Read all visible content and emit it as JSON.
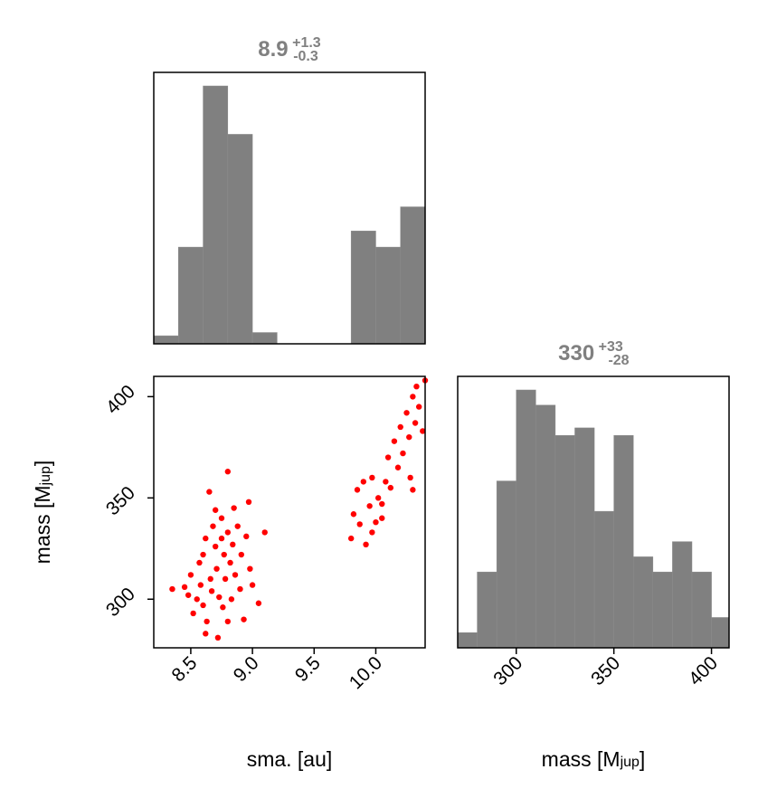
{
  "colors": {
    "hist": "#808080",
    "scatter": "#ff0000",
    "title": "#808080",
    "frame": "#000000"
  },
  "chart_data": [
    {
      "type": "histogram",
      "panel": "sma-histogram",
      "title": {
        "value": "8.9",
        "plus": "+1.3",
        "minus": "-0.3"
      },
      "bin_edges": [
        8.2,
        8.4,
        8.6,
        8.8,
        9.0,
        9.2,
        9.4,
        9.6,
        9.8,
        10.0,
        10.2,
        10.4
      ],
      "counts": [
        1,
        12,
        32,
        26,
        1.4,
        0,
        0,
        0,
        14,
        12,
        17
      ],
      "xlim": [
        8.2,
        10.4
      ]
    },
    {
      "type": "scatter",
      "panel": "sma-mass-scatter",
      "xlabel_main": "sma. [au]",
      "ylabel_main": "mass [M",
      "ylabel_sub": "jup",
      "ylabel_close": "]",
      "xlim": [
        8.2,
        10.4
      ],
      "ylim": [
        276,
        410
      ],
      "xticks": [
        8.5,
        9.0,
        9.5,
        10.0
      ],
      "xtick_labels": [
        "8.5",
        "9.0",
        "9.5",
        "10.0"
      ],
      "yticks": [
        300,
        350,
        400
      ],
      "ytick_labels": [
        "300",
        "350",
        "400"
      ],
      "points": [
        [
          8.45,
          306
        ],
        [
          8.5,
          312
        ],
        [
          8.52,
          293
        ],
        [
          8.55,
          300
        ],
        [
          8.57,
          318
        ],
        [
          8.58,
          307
        ],
        [
          8.6,
          322
        ],
        [
          8.6,
          297
        ],
        [
          8.62,
          330
        ],
        [
          8.63,
          289
        ],
        [
          8.65,
          353
        ],
        [
          8.66,
          310
        ],
        [
          8.67,
          304
        ],
        [
          8.68,
          336
        ],
        [
          8.7,
          344
        ],
        [
          8.7,
          326
        ],
        [
          8.71,
          315
        ],
        [
          8.72,
          281
        ],
        [
          8.73,
          301
        ],
        [
          8.75,
          340
        ],
        [
          8.75,
          330
        ],
        [
          8.76,
          296
        ],
        [
          8.77,
          322
        ],
        [
          8.78,
          310
        ],
        [
          8.8,
          363
        ],
        [
          8.8,
          333
        ],
        [
          8.8,
          289
        ],
        [
          8.82,
          318
        ],
        [
          8.83,
          300
        ],
        [
          8.84,
          327
        ],
        [
          8.85,
          345
        ],
        [
          8.86,
          312
        ],
        [
          8.88,
          336
        ],
        [
          8.9,
          305
        ],
        [
          8.91,
          322
        ],
        [
          8.93,
          290
        ],
        [
          8.95,
          331
        ],
        [
          8.97,
          348
        ],
        [
          8.98,
          315
        ],
        [
          9.0,
          307
        ],
        [
          9.05,
          298
        ],
        [
          9.1,
          333
        ],
        [
          8.35,
          305
        ],
        [
          8.62,
          283
        ],
        [
          8.48,
          302
        ],
        [
          9.8,
          330
        ],
        [
          9.82,
          342
        ],
        [
          9.85,
          354
        ],
        [
          9.87,
          337
        ],
        [
          9.9,
          358
        ],
        [
          9.92,
          327
        ],
        [
          9.95,
          346
        ],
        [
          9.97,
          360
        ],
        [
          10.0,
          338
        ],
        [
          10.02,
          350
        ],
        [
          10.05,
          340
        ],
        [
          10.08,
          358
        ],
        [
          10.1,
          370
        ],
        [
          10.12,
          355
        ],
        [
          10.15,
          378
        ],
        [
          10.18,
          365
        ],
        [
          10.2,
          385
        ],
        [
          10.22,
          372
        ],
        [
          10.25,
          392
        ],
        [
          10.27,
          380
        ],
        [
          10.28,
          360
        ],
        [
          10.3,
          400
        ],
        [
          10.32,
          387
        ],
        [
          10.33,
          405
        ],
        [
          10.35,
          395
        ],
        [
          10.38,
          383
        ],
        [
          10.4,
          408
        ],
        [
          10.3,
          354
        ],
        [
          10.05,
          347
        ],
        [
          9.97,
          333
        ]
      ]
    },
    {
      "type": "histogram",
      "panel": "mass-histogram",
      "title": {
        "value": "330",
        "plus": "+33",
        "minus": "-28"
      },
      "xlabel_main": "mass [M",
      "xlabel_sub": "jup",
      "xlabel_close": "]",
      "bin_edges": [
        270,
        280,
        290,
        300,
        310,
        320,
        330,
        340,
        350,
        360,
        370,
        380,
        390,
        400,
        410
      ],
      "counts": [
        1,
        5,
        11,
        17,
        16,
        14,
        14.5,
        9,
        14,
        6,
        5,
        7,
        5,
        2
      ],
      "xlim": [
        270,
        409
      ],
      "xticks": [
        300,
        350,
        400
      ],
      "xtick_labels": [
        "300",
        "350",
        "400"
      ]
    }
  ]
}
